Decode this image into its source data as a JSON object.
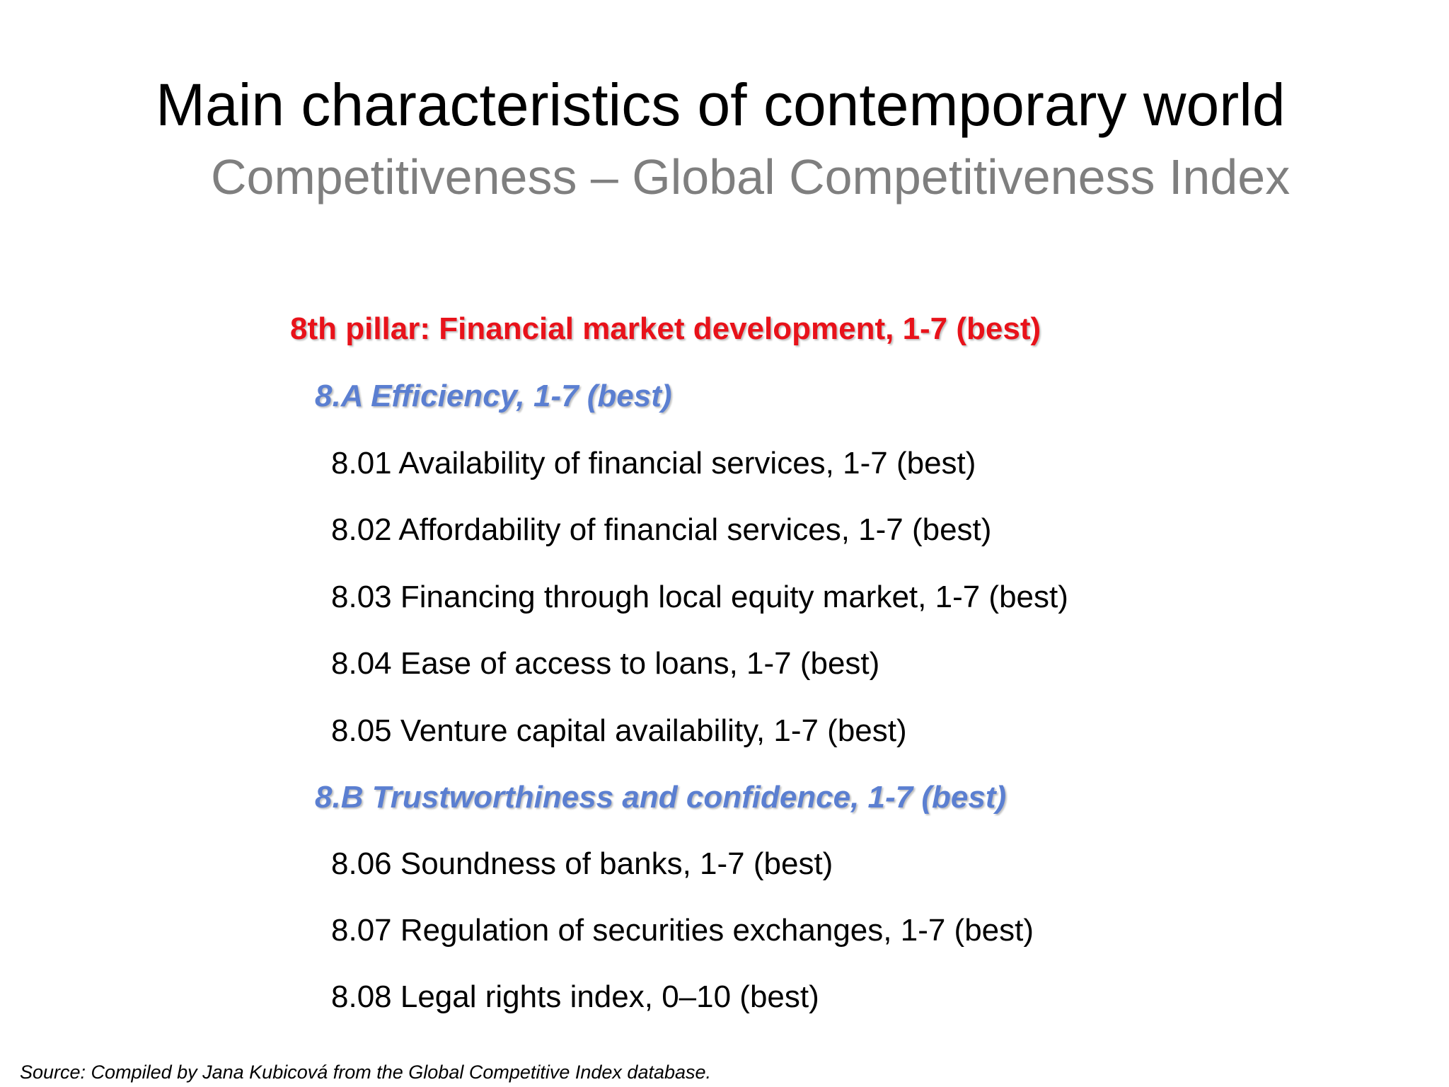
{
  "slide": {
    "title": "Main characteristics of contemporary world",
    "subtitle": "Competitiveness – Global Competitiveness Index"
  },
  "pillar": {
    "heading": "8th pillar: Financial market development, 1-7 (best)"
  },
  "sections": [
    {
      "heading": "8.A Efficiency, 1-7 (best)",
      "items": [
        "8.01 Availability of financial services, 1-7 (best)",
        "8.02 Affordability of financial services, 1-7 (best)",
        "8.03 Financing through local equity market, 1-7 (best)",
        "8.04 Ease of access to loans, 1-7 (best)",
        "8.05 Venture capital availability, 1-7 (best)"
      ]
    },
    {
      "heading": "8.B Trustworthiness and confidence, 1-7 (best)",
      "items": [
        "8.06 Soundness of banks, 1-7 (best)",
        "8.07 Regulation of securities exchanges, 1-7 (best)",
        "8.08 Legal rights index, 0–10 (best)"
      ]
    }
  ],
  "footer": {
    "source": "Source: Compiled by Jana Kubicová from the Global Competitive Index database."
  },
  "colors": {
    "title": "#000000",
    "subtitle": "#7f7f7f",
    "pillar_heading": "#e8121a",
    "section_heading": "#5b7fd1",
    "body_text": "#000000"
  }
}
